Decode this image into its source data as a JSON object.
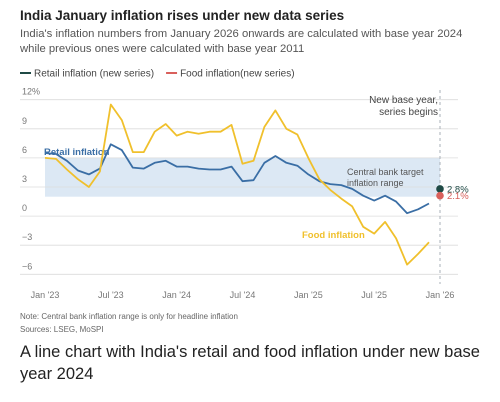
{
  "chart_data": {
    "type": "line",
    "title": "India January inflation rises under new data series",
    "subtitle": "India's inflation numbers from January 2026 onwards are calculated with base year 2024 while previous ones were calculated with base year 2011",
    "categories": [
      "Jan '23",
      null,
      null,
      null,
      null,
      null,
      "Jul '23",
      null,
      null,
      null,
      null,
      null,
      "Jan '24",
      null,
      null,
      null,
      null,
      null,
      "Jul '24",
      null,
      null,
      null,
      null,
      null,
      "Jan '25",
      null,
      null,
      null,
      null,
      null,
      "Jul '25",
      null,
      null,
      null,
      null,
      null,
      "Jan '26"
    ],
    "series": [
      {
        "name": "Retail inflation",
        "color": "#3a6ea5",
        "values": [
          6.5,
          6.4,
          5.7,
          4.7,
          4.3,
          4.9,
          7.4,
          6.8,
          5.0,
          4.9,
          5.5,
          5.7,
          5.1,
          5.1,
          4.9,
          4.8,
          4.8,
          5.1,
          3.6,
          3.7,
          5.5,
          6.2,
          5.5,
          5.2,
          4.3,
          3.6,
          3.3,
          3.2,
          2.8,
          2.1,
          1.6,
          2.1,
          1.5,
          0.3,
          0.7,
          1.3,
          null
        ]
      },
      {
        "name": "Food inflation",
        "color": "#f0c02c",
        "values": [
          6.0,
          5.9,
          4.8,
          3.8,
          3.0,
          4.6,
          11.5,
          9.9,
          6.6,
          6.6,
          8.7,
          9.5,
          8.3,
          8.7,
          8.5,
          8.7,
          8.7,
          9.4,
          5.4,
          5.7,
          9.2,
          10.9,
          9.0,
          8.4,
          6.0,
          3.8,
          2.7,
          1.8,
          1.0,
          -1.1,
          -1.8,
          -0.6,
          -2.3,
          -5.0,
          -3.9,
          -2.7,
          null
        ]
      },
      {
        "name": "Retail inflation (new series)",
        "color": "#1f4a45",
        "values": [
          null,
          null,
          null,
          null,
          null,
          null,
          null,
          null,
          null,
          null,
          null,
          null,
          null,
          null,
          null,
          null,
          null,
          null,
          null,
          null,
          null,
          null,
          null,
          null,
          null,
          null,
          null,
          null,
          null,
          null,
          null,
          null,
          null,
          null,
          null,
          null,
          2.8
        ],
        "value_labels": [
          null,
          null,
          null,
          null,
          null,
          null,
          null,
          null,
          null,
          null,
          null,
          null,
          null,
          null,
          null,
          null,
          null,
          null,
          null,
          null,
          null,
          null,
          null,
          null,
          null,
          null,
          null,
          null,
          null,
          null,
          null,
          null,
          null,
          null,
          null,
          null,
          "2.8%"
        ]
      },
      {
        "name": "Food inflation(new series)",
        "color": "#d9605c",
        "values": [
          null,
          null,
          null,
          null,
          null,
          null,
          null,
          null,
          null,
          null,
          null,
          null,
          null,
          null,
          null,
          null,
          null,
          null,
          null,
          null,
          null,
          null,
          null,
          null,
          null,
          null,
          null,
          null,
          null,
          null,
          null,
          null,
          null,
          null,
          null,
          null,
          2.1
        ],
        "value_labels": [
          null,
          null,
          null,
          null,
          null,
          null,
          null,
          null,
          null,
          null,
          null,
          null,
          null,
          null,
          null,
          null,
          null,
          null,
          null,
          null,
          null,
          null,
          null,
          null,
          null,
          null,
          null,
          null,
          null,
          null,
          null,
          null,
          null,
          null,
          null,
          null,
          "2.1%"
        ]
      }
    ],
    "legend": [
      2,
      3
    ],
    "ylim": [
      -7,
      13
    ],
    "yticks": [
      {
        "value": 12,
        "label": "12%"
      },
      9,
      6,
      3,
      0,
      {
        "value": -3,
        "label": "−3"
      },
      {
        "value": -6,
        "label": "−6"
      }
    ],
    "grid": true,
    "target_range": [
      2,
      6
    ],
    "target_color": "#dce8f4",
    "annotations": [
      [
        "New base year,",
        "series begins"
      ],
      [
        "Central bank target",
        "inflation range"
      ]
    ],
    "notes": [
      "Note: Central bank inflation range is only for headline inflation",
      "Sources: LSEG, MoSPI"
    ],
    "caption": "A line chart with India's retail and food inflation under new base year 2024"
  }
}
